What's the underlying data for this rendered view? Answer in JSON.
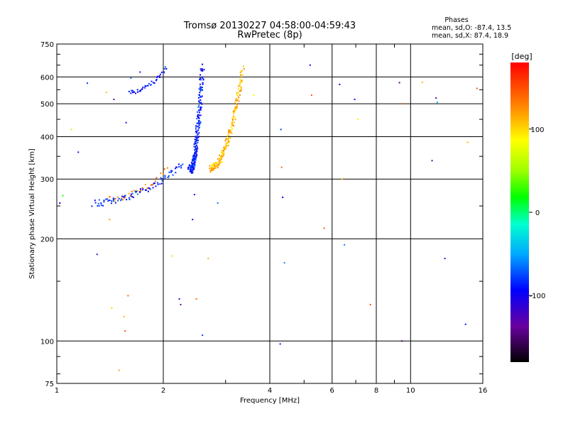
{
  "chart_data": {
    "type": "scatter",
    "title": "Tromsø 20130227 04:58:00-04:59:43",
    "subtitle": "RwPretec (8p)",
    "stats": {
      "title": "Phases",
      "line_o": "mean, sd,O: -87.4, 13.5",
      "line_x": "mean, sd,X:  87.4, 18.9"
    },
    "xlabel": "Frequency [MHz]",
    "ylabel": "Stationary phase Virtual Height [km]",
    "x_scale": "log",
    "y_scale": "log",
    "xlim": [
      1,
      16
    ],
    "ylim": [
      75,
      750
    ],
    "x_ticks": [
      1,
      2,
      4,
      6,
      8,
      10,
      16
    ],
    "x_tick_labels": [
      "1",
      "2",
      "4",
      "6",
      "8",
      "10",
      "16"
    ],
    "y_ticks": [
      75,
      100,
      200,
      300,
      400,
      500,
      600,
      750
    ],
    "y_tick_labels": [
      "75",
      "100",
      "200",
      "300",
      "400",
      "500",
      "600",
      "750"
    ],
    "grid": true,
    "colorbar": {
      "label": "[deg]",
      "range": [
        -180,
        180
      ],
      "ticks": [
        100,
        0,
        -100
      ],
      "tick_labels": [
        "100",
        "0",
        "-100"
      ]
    },
    "traces": [
      {
        "phase": -87,
        "count": 90,
        "f": [
          1.27,
          2.28
        ],
        "h": [
          255,
          335
        ],
        "spread": 0.022
      },
      {
        "phase": 130,
        "count": 25,
        "f": [
          1.4,
          2.05
        ],
        "h": [
          262,
          322
        ],
        "spread": 0.02
      },
      {
        "phase": -88,
        "count": 220,
        "f": [
          2.38,
          2.58
        ],
        "h": [
          320,
          640
        ],
        "spread": 0.026
      },
      {
        "phase": 110,
        "count": 200,
        "f": [
          2.72,
          3.35
        ],
        "h": [
          322,
          630
        ],
        "spread": 0.025
      },
      {
        "phase": -90,
        "count": 40,
        "f": [
          1.6,
          2.05
        ],
        "h": [
          540,
          640
        ],
        "spread": 0.012
      }
    ],
    "points": [
      {
        "f": 1.02,
        "h": 255,
        "phase": -95
      },
      {
        "f": 1.04,
        "h": 268,
        "phase": 20
      },
      {
        "f": 1.1,
        "h": 420,
        "phase": 60
      },
      {
        "f": 1.15,
        "h": 360,
        "phase": -110
      },
      {
        "f": 1.22,
        "h": 575,
        "phase": -80
      },
      {
        "f": 1.3,
        "h": 180,
        "phase": -120
      },
      {
        "f": 1.38,
        "h": 540,
        "phase": 110
      },
      {
        "f": 1.41,
        "h": 228,
        "phase": 120
      },
      {
        "f": 1.43,
        "h": 125,
        "phase": 100
      },
      {
        "f": 1.45,
        "h": 515,
        "phase": -130
      },
      {
        "f": 1.5,
        "h": 82,
        "phase": 115
      },
      {
        "f": 1.55,
        "h": 118,
        "phase": 110
      },
      {
        "f": 1.56,
        "h": 107,
        "phase": 150
      },
      {
        "f": 1.57,
        "h": 440,
        "phase": -120
      },
      {
        "f": 1.59,
        "h": 136,
        "phase": 140
      },
      {
        "f": 1.62,
        "h": 595,
        "phase": -60
      },
      {
        "f": 1.72,
        "h": 620,
        "phase": -110
      },
      {
        "f": 2.12,
        "h": 178,
        "phase": 100
      },
      {
        "f": 2.22,
        "h": 133,
        "phase": -120
      },
      {
        "f": 2.24,
        "h": 128,
        "phase": -130
      },
      {
        "f": 2.42,
        "h": 228,
        "phase": -100
      },
      {
        "f": 2.45,
        "h": 270,
        "phase": -90
      },
      {
        "f": 2.48,
        "h": 133,
        "phase": 140
      },
      {
        "f": 2.58,
        "h": 104,
        "phase": -80
      },
      {
        "f": 2.68,
        "h": 175,
        "phase": 110
      },
      {
        "f": 2.85,
        "h": 255,
        "phase": -60
      },
      {
        "f": 3.6,
        "h": 530,
        "phase": 90
      },
      {
        "f": 4.28,
        "h": 98,
        "phase": -120
      },
      {
        "f": 4.3,
        "h": 420,
        "phase": -80
      },
      {
        "f": 4.32,
        "h": 325,
        "phase": 140
      },
      {
        "f": 4.35,
        "h": 265,
        "phase": -100
      },
      {
        "f": 4.4,
        "h": 170,
        "phase": -60
      },
      {
        "f": 5.2,
        "h": 650,
        "phase": -110
      },
      {
        "f": 5.25,
        "h": 530,
        "phase": 150
      },
      {
        "f": 5.7,
        "h": 215,
        "phase": 145
      },
      {
        "f": 6.3,
        "h": 570,
        "phase": -100
      },
      {
        "f": 6.4,
        "h": 300,
        "phase": 110
      },
      {
        "f": 6.5,
        "h": 192,
        "phase": -60
      },
      {
        "f": 6.95,
        "h": 515,
        "phase": -90
      },
      {
        "f": 7.1,
        "h": 450,
        "phase": 90
      },
      {
        "f": 7.7,
        "h": 128,
        "phase": 150
      },
      {
        "f": 9.3,
        "h": 577,
        "phase": -150
      },
      {
        "f": 9.45,
        "h": 100,
        "phase": -150
      },
      {
        "f": 9.5,
        "h": 500,
        "phase": 140
      },
      {
        "f": 10.8,
        "h": 578,
        "phase": 110
      },
      {
        "f": 11.5,
        "h": 340,
        "phase": -140
      },
      {
        "f": 11.8,
        "h": 520,
        "phase": -130
      },
      {
        "f": 11.9,
        "h": 505,
        "phase": -50
      },
      {
        "f": 12.5,
        "h": 175,
        "phase": -120
      },
      {
        "f": 14.3,
        "h": 112,
        "phase": -90
      },
      {
        "f": 14.5,
        "h": 385,
        "phase": 110
      },
      {
        "f": 15.4,
        "h": 555,
        "phase": 150
      }
    ]
  }
}
